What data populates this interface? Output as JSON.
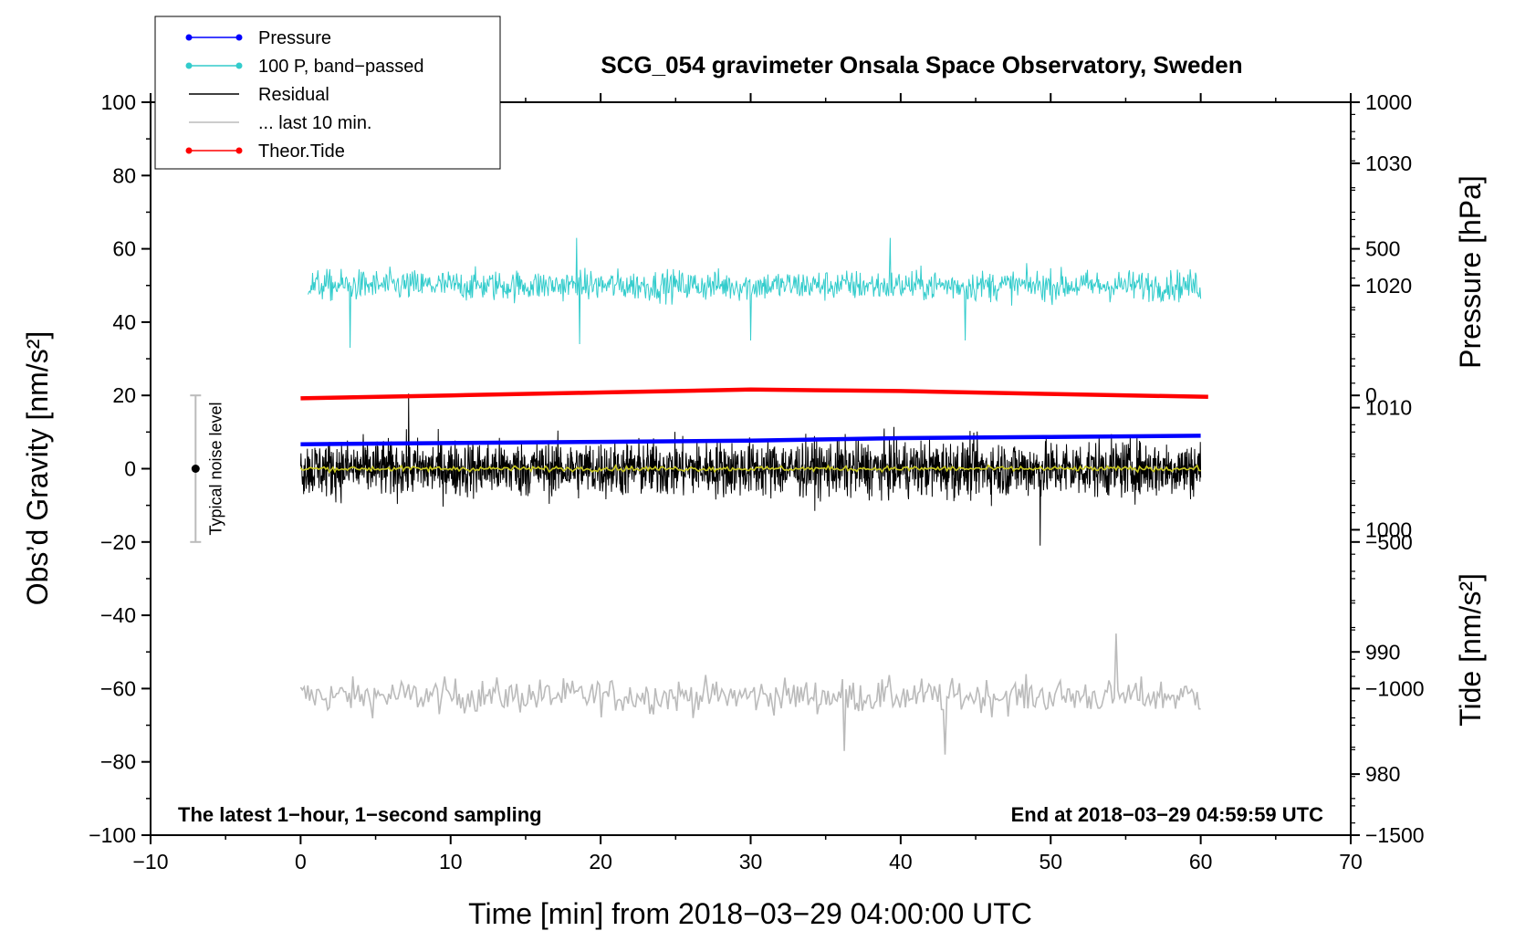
{
  "chart_data": {
    "type": "line",
    "title": "SCG_054 gravimeter Onsala Space Observatory, Sweden",
    "xlabel": "Time [min] from 2018−03−29 04:00:00 UTC",
    "ylabel": "Obs’d Gravity [nm/s²]",
    "ylabel_right_top": "Pressure [hPa]",
    "ylabel_right_bottom": "Tide [nm/s²]",
    "xlim": [
      -10,
      70
    ],
    "ylim": [
      -100,
      100
    ],
    "pressure_lim": [
      975,
      1035
    ],
    "tide_lim": [
      -1500,
      1000
    ],
    "x_ticks": [
      "−10",
      "0",
      "10",
      "20",
      "30",
      "40",
      "50",
      "60",
      "70"
    ],
    "x_tick_values": [
      -10,
      0,
      10,
      20,
      30,
      40,
      50,
      60,
      70
    ],
    "y_ticks": [
      "100",
      "80",
      "60",
      "40",
      "20",
      "0",
      "−20",
      "−40",
      "−60",
      "−80",
      "−100"
    ],
    "y_tick_values": [
      100,
      80,
      60,
      40,
      20,
      0,
      -20,
      -40,
      -60,
      -80,
      -100
    ],
    "pressure_ticks": [
      "1030",
      "1020",
      "1010",
      "1000",
      "990",
      "980"
    ],
    "pressure_tick_values": [
      1030,
      1020,
      1010,
      1000,
      990,
      980
    ],
    "tide_ticks": [
      "1000",
      "500",
      "0",
      "−500",
      "−1000",
      "−1500"
    ],
    "tide_tick_values": [
      1000,
      500,
      0,
      -500,
      -1000,
      -1500
    ],
    "legend_position": "top-left",
    "legend": [
      {
        "label": "Pressure",
        "color": "#0000ff",
        "marker": true
      },
      {
        "label": "100 P, band−passed",
        "color": "#33cccc",
        "marker": true
      },
      {
        "label": "Residual",
        "color": "#000000",
        "marker": false
      },
      {
        "label": "... last 10 min.",
        "color": "#bbbbbb",
        "marker": false
      },
      {
        "label": "Theor.Tide",
        "color": "#ff0000",
        "marker": true
      }
    ],
    "annotations": {
      "left_note": "The latest 1−hour, 1−second sampling",
      "right_note": "End at 2018−03−29 04:59:59 UTC",
      "noise_label": "Typical noise level",
      "noise_bar": {
        "x": -7,
        "center": 0,
        "low": -20,
        "high": 20
      }
    },
    "series": [
      {
        "name": "Pressure",
        "axis": "pressure",
        "color": "#0000ff",
        "x": [
          0,
          10,
          20,
          30,
          40,
          50,
          60
        ],
        "values": [
          1007.0,
          1007.1,
          1007.2,
          1007.3,
          1007.5,
          1007.6,
          1007.7
        ]
      },
      {
        "name": "100 P, band−passed",
        "axis": "left",
        "color": "#33cccc",
        "xrange": [
          0.5,
          60
        ],
        "mean": 50,
        "amplitude": 6,
        "spikes": [
          [
            3.3,
            33
          ],
          [
            18.4,
            63
          ],
          [
            18.6,
            34
          ],
          [
            30,
            35
          ],
          [
            39.3,
            63
          ],
          [
            44.3,
            35
          ]
        ]
      },
      {
        "name": "Residual",
        "axis": "left",
        "color": "#000000",
        "xrange": [
          0,
          60
        ],
        "mean": 0,
        "amplitude": 11,
        "spikes": [
          [
            7.2,
            20.5
          ],
          [
            49.3,
            -21
          ]
        ]
      },
      {
        "name": "Residual smoothed",
        "axis": "left",
        "color": "#c8c820",
        "xrange": [
          0,
          60
        ],
        "mean": 0,
        "amplitude": 1.2
      },
      {
        "name": "... last 10 min.",
        "axis": "left",
        "color": "#bbbbbb",
        "xrange": [
          0,
          60
        ],
        "mean": -62,
        "amplitude": 8,
        "spikes": [
          [
            54.3,
            -45
          ],
          [
            43,
            -78
          ],
          [
            36.2,
            -77
          ]
        ]
      },
      {
        "name": "Theor.Tide",
        "axis": "tide",
        "color": "#ff0000",
        "x": [
          0,
          10,
          20,
          30,
          40,
          50,
          60.5
        ],
        "values": [
          -10,
          0,
          10,
          20,
          15,
          5,
          -5
        ]
      }
    ]
  }
}
